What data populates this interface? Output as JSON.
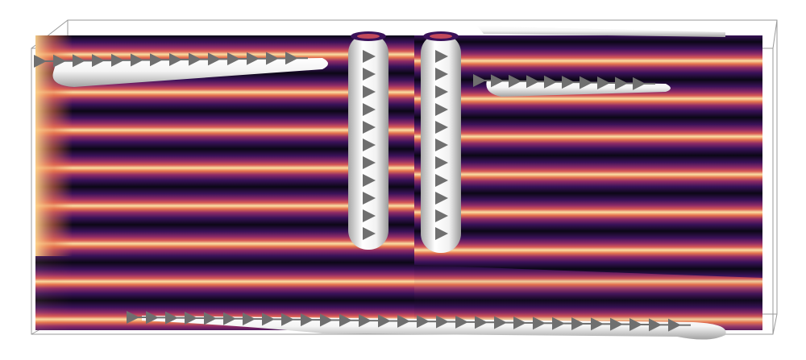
{
  "scene": {
    "description_hidden": "",
    "colors": {
      "background": "#ffffff",
      "frame": "#9a9a9a",
      "stripe_ramp": [
        "#0b0716",
        "#2d0f4d",
        "#6b1e6a",
        "#b8405f",
        "#ec7a4d",
        "#fbd28c",
        "#fff2c8"
      ],
      "tube_light": "#ffffff",
      "tube_dark": "#9b9b9b",
      "arrow": "#6f6f6f"
    }
  }
}
